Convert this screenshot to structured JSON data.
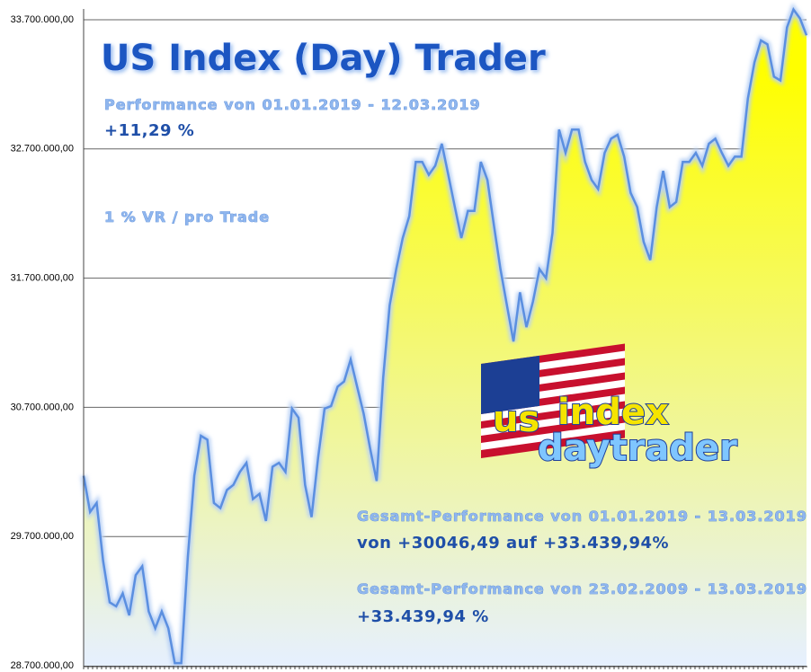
{
  "chart_data": {
    "type": "area",
    "title": "US Index (Day) Trader",
    "annotations": [
      "Performance  von  01.01.2019 - 12.03.2019",
      "+11,29 %",
      "1 % VR / pro Trade",
      "Gesamt-Performance  von  01.01.2019 - 13.03.2019",
      "von +30046,49 auf  +33.439,94%",
      "Gesamt-Performance  von  23.02.2009 - 13.03.2019",
      "+33.439,94 %"
    ],
    "logo": [
      "us",
      "index",
      "daytrader"
    ],
    "values": [
      30170000,
      29890000,
      29960000,
      29510000,
      29190000,
      29160000,
      29260000,
      29090000,
      29400000,
      29470000,
      29120000,
      28990000,
      29120000,
      28990000,
      28720000,
      28720000,
      29540000,
      30170000,
      30480000,
      30450000,
      29960000,
      29920000,
      30060000,
      30100000,
      30200000,
      30270000,
      29990000,
      30030000,
      29820000,
      30240000,
      30270000,
      30200000,
      30690000,
      30620000,
      30100000,
      29850000,
      30310000,
      30690000,
      30710000,
      30860000,
      30900000,
      31070000,
      30860000,
      30650000,
      30380000,
      30130000,
      30930000,
      31490000,
      31770000,
      32010000,
      32180000,
      32600000,
      32600000,
      32500000,
      32570000,
      32740000,
      32500000,
      32250000,
      32010000,
      32220000,
      32220000,
      32600000,
      32460000,
      32110000,
      31770000,
      31490000,
      31210000,
      31590000,
      31320000,
      31520000,
      31770000,
      31700000,
      32050000,
      32850000,
      32670000,
      32850000,
      32850000,
      32600000,
      32460000,
      32390000,
      32670000,
      32780000,
      32810000,
      32640000,
      32360000,
      32250000,
      31980000,
      31840000,
      32250000,
      32530000,
      32250000,
      32290000,
      32600000,
      32600000,
      32670000,
      32570000,
      32740000,
      32780000,
      32670000,
      32570000,
      32640000,
      32640000,
      33090000,
      33370000,
      33540000,
      33510000,
      33260000,
      33230000,
      33640000,
      33780000,
      33710000,
      33580000
    ],
    "line_color": "#5b8fe0",
    "fill_top": "#ffff00",
    "fill_bottom": "#e6f0ff",
    "ylim": [
      28700000,
      33800000
    ],
    "yticks": [
      {
        "value": 28700000,
        "label": "28.700.000,00"
      },
      {
        "value": 29700000,
        "label": "29.700.000,00"
      },
      {
        "value": 30700000,
        "label": "30.700.000,00"
      },
      {
        "value": 31700000,
        "label": "31.700.000,00"
      },
      {
        "value": 32700000,
        "label": "32.700.000,00"
      },
      {
        "value": 33700000,
        "label": "33.700.000,00"
      }
    ],
    "grid": true
  }
}
